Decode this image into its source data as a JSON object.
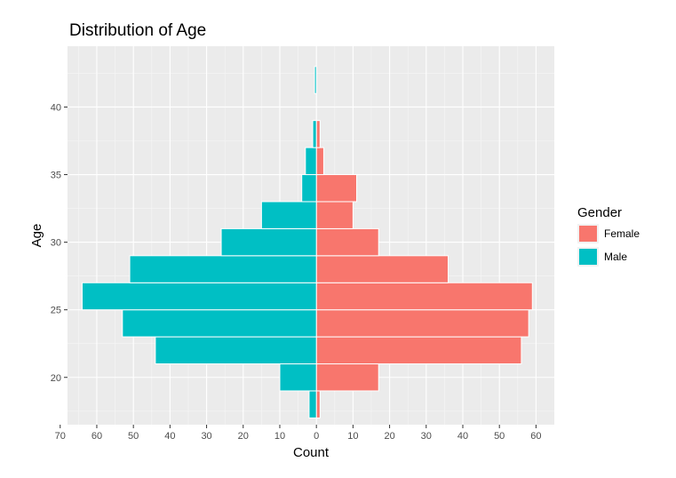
{
  "chart_data": {
    "type": "bar",
    "orientation": "horizontal",
    "title": "Distribution of Age",
    "xlabel": "Count",
    "ylabel": "Age",
    "xlim": [
      -68,
      65
    ],
    "ylim": [
      16.5,
      44.5
    ],
    "x_ticks": [
      -70,
      -60,
      -50,
      -40,
      -30,
      -20,
      -10,
      0,
      10,
      20,
      30,
      40,
      50,
      60
    ],
    "x_tick_labels": [
      "70",
      "60",
      "50",
      "40",
      "30",
      "20",
      "10",
      "0",
      "10",
      "20",
      "30",
      "40",
      "50",
      "60"
    ],
    "y_ticks": [
      20,
      25,
      30,
      35,
      40
    ],
    "y_tick_labels": [
      "20",
      "25",
      "30",
      "35",
      "40"
    ],
    "bin_width": 2,
    "bins": [
      18,
      20,
      22,
      24,
      26,
      28,
      30,
      32,
      34,
      36,
      38,
      40,
      42
    ],
    "series": [
      {
        "name": "Female",
        "color": "#F8766D",
        "direction": "right",
        "values": [
          1,
          17,
          56,
          58,
          59,
          36,
          17,
          10,
          11,
          2,
          1,
          0,
          0
        ]
      },
      {
        "name": "Male",
        "color": "#00BFC4",
        "direction": "left",
        "values": [
          2,
          10,
          44,
          53,
          64,
          51,
          26,
          15,
          4,
          3,
          1,
          0,
          0.5
        ]
      }
    ],
    "legend": {
      "title": "Gender",
      "position": "right"
    },
    "grid": true,
    "panel_background": "#EBEBEB",
    "grid_color": "#FFFFFF"
  }
}
